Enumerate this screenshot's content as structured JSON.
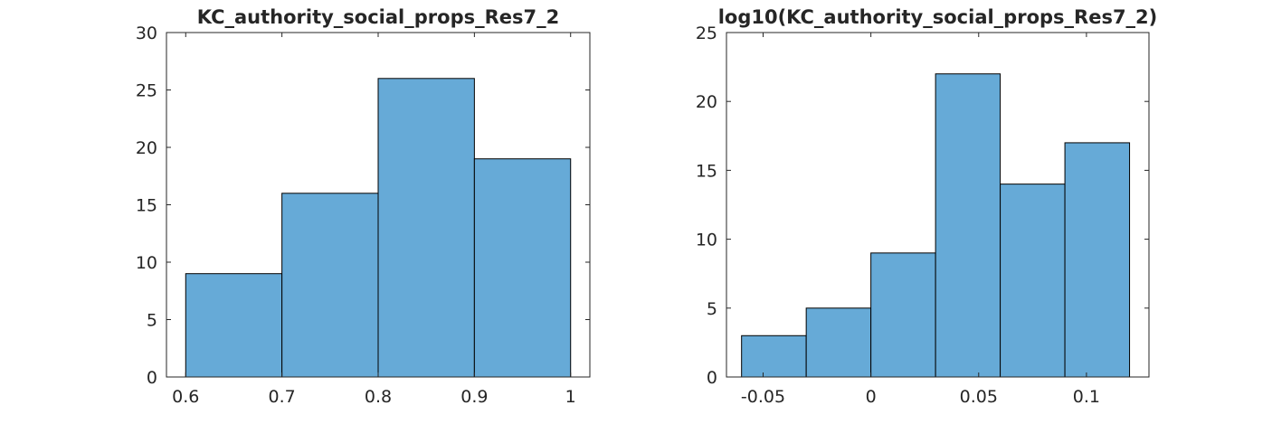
{
  "chart_data": [
    {
      "type": "bar",
      "title": "KC_authority_social_props_Res7_2",
      "bin_edges": [
        0.6,
        0.7,
        0.8,
        0.9,
        1.0
      ],
      "values": [
        9,
        16,
        26,
        19
      ],
      "xlim": [
        0.58,
        1.02
      ],
      "ylim": [
        0,
        30
      ],
      "xticks": [
        0.6,
        0.7,
        0.8,
        0.9,
        1
      ],
      "xtick_labels": [
        "0.6",
        "0.7",
        "0.8",
        "0.9",
        "1"
      ],
      "yticks": [
        0,
        5,
        10,
        15,
        20,
        25,
        30
      ],
      "ytick_labels": [
        "0",
        "5",
        "10",
        "15",
        "20",
        "25",
        "30"
      ],
      "grid": false,
      "bar_color": "#66aad7",
      "edge_color": "#000000"
    },
    {
      "type": "bar",
      "title": "log10(KC_authority_social_props_Res7_2)",
      "bin_edges": [
        -0.06,
        -0.03,
        0.0,
        0.03,
        0.06,
        0.09,
        0.12
      ],
      "values": [
        3,
        5,
        9,
        22,
        14,
        17
      ],
      "xlim": [
        -0.067,
        0.129
      ],
      "ylim": [
        0,
        25
      ],
      "xticks": [
        -0.05,
        0,
        0.05,
        0.1
      ],
      "xtick_labels": [
        "-0.05",
        "0",
        "0.05",
        "0.1"
      ],
      "yticks": [
        0,
        5,
        10,
        15,
        20,
        25
      ],
      "ytick_labels": [
        "0",
        "5",
        "10",
        "15",
        "20",
        "25"
      ],
      "grid": false,
      "bar_color": "#66aad7",
      "edge_color": "#000000"
    }
  ]
}
